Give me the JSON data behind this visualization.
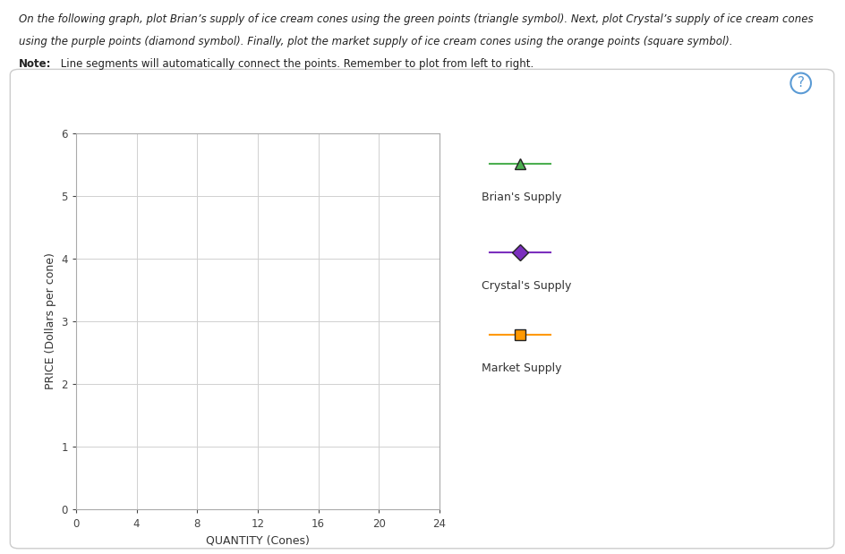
{
  "xlabel": "QUANTITY (Cones)",
  "ylabel": "PRICE (Dollars per cone)",
  "xlim": [
    0,
    24
  ],
  "ylim": [
    0,
    6
  ],
  "xticks": [
    0,
    4,
    8,
    12,
    16,
    20,
    24
  ],
  "yticks": [
    0,
    1,
    2,
    3,
    4,
    5,
    6
  ],
  "brian_color": "#4caf50",
  "crystal_color": "#7b2fbe",
  "market_color": "#ff9900",
  "brian_label": "Brian's Supply",
  "crystal_label": "Crystal's Supply",
  "market_label": "Market Supply",
  "bg_color": "#ffffff",
  "grid_color": "#d0d0d0",
  "line1_top": "On the following graph, plot Brian’s supply of ice cream cones using the green points (triangle symbol). Next, plot Crystal’s supply of ice cream cones",
  "line2_top": "using the purple points (diamond symbol). Finally, plot the market supply of ice cream cones using the orange points (square symbol).",
  "note_bold": "Note:",
  "note_rest": " Line segments will automatically connect the points. Remember to plot from left to right."
}
